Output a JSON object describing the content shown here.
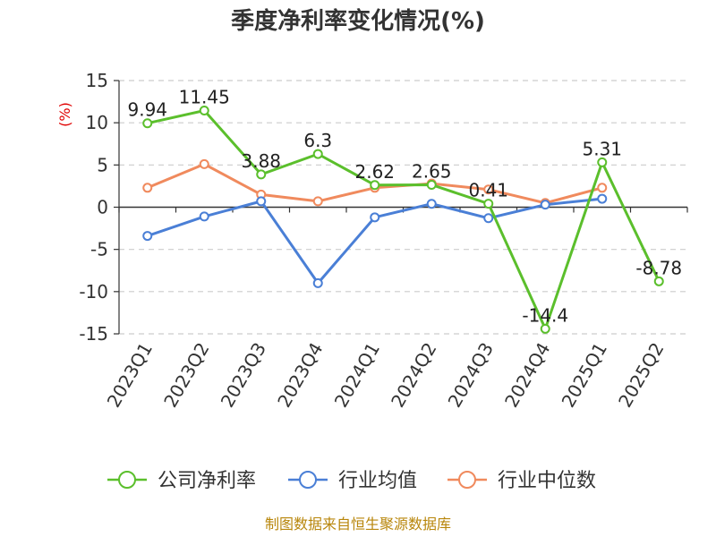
{
  "chart_data": {
    "type": "line",
    "title": "季度净利率变化情况(%)",
    "unit_label": "(%)",
    "categories": [
      "2023Q1",
      "2023Q2",
      "2023Q3",
      "2023Q4",
      "2024Q1",
      "2024Q2",
      "2024Q3",
      "2024Q4",
      "2025Q1",
      "2025Q2"
    ],
    "ylim": [
      -15,
      15
    ],
    "yticks": [
      15,
      10,
      5,
      0,
      -5,
      -10,
      -15
    ],
    "grid": true,
    "legend_position": "bottom",
    "series": [
      {
        "name": "公司净利率",
        "color": "#5bbf2c",
        "values": [
          9.94,
          11.45,
          3.88,
          6.3,
          2.62,
          2.65,
          0.41,
          -14.4,
          5.31,
          -8.78
        ],
        "labels": [
          "9.94",
          "11.45",
          "3.88",
          "6.3",
          "2.62",
          "2.65",
          "0.41",
          "-14.4",
          "5.31",
          "-8.78"
        ]
      },
      {
        "name": "行业均值",
        "color": "#4a7fd6",
        "values": [
          -3.4,
          -1.1,
          0.7,
          -9.0,
          -1.2,
          0.4,
          -1.3,
          0.3,
          1.0,
          null
        ]
      },
      {
        "name": "行业中位数",
        "color": "#f08a5d",
        "values": [
          2.3,
          5.1,
          1.5,
          0.7,
          2.3,
          2.8,
          2.1,
          0.5,
          2.3,
          null
        ]
      }
    ]
  },
  "footer": "制图数据来自恒生聚源数据库"
}
